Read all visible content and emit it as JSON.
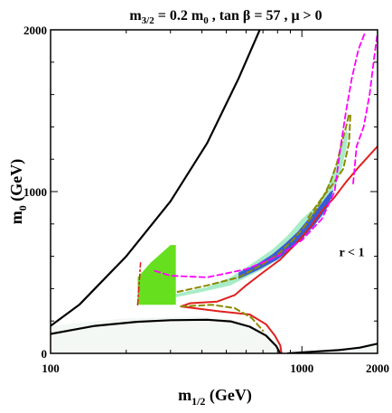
{
  "chart_data": {
    "type": "line",
    "title": "m3/2 = 0.2 m0 , tan β = 57 ,  μ > 0",
    "title_parts": {
      "m_main": "m",
      "m_sub": "3/2",
      "eq_mid": " = 0.2 m",
      "m0_sub": "0",
      "rest": " , tan β = 57 ,  μ > 0"
    },
    "xlabel_parts": {
      "main": "m",
      "sub": "1/2",
      "unit": " (GeV)"
    },
    "ylabel_parts": {
      "main": "m",
      "sub": "0",
      "unit": " (GeV)"
    },
    "xlim": [
      100,
      2000
    ],
    "ylim": [
      0,
      2000
    ],
    "x_ticks": [
      {
        "value": 100,
        "label": "100"
      },
      {
        "value": 1000,
        "label": "1000"
      },
      {
        "value": 2000,
        "label": "2000"
      }
    ],
    "y_ticks": [
      {
        "value": 0,
        "label": "0"
      },
      {
        "value": 1000,
        "label": "1000"
      },
      {
        "value": 2000,
        "label": "2000"
      }
    ],
    "annotation": {
      "text": "r < 1",
      "x": 1580,
      "y": 600
    },
    "grid": false,
    "colors": {
      "charged_lsp_fill": "#f3f8f5",
      "wmap_light": "#a8ecc8",
      "wmap_dark": "#3a5cd8",
      "bsg_green": "#66e01e",
      "higgs": "#cc0000",
      "gmuon": "#aa1f8f",
      "chargino_lep": "#7a9a00",
      "mh_red": "#e02020",
      "gmuon_magenta": "#ff00ff",
      "olive_dashed": "#8a8a00",
      "black": "#000000"
    },
    "regions": {
      "charged_lsp_bottom": [
        [
          100,
          170
        ],
        [
          190,
          215
        ],
        [
          260,
          222
        ],
        [
          380,
          228
        ],
        [
          500,
          215
        ],
        [
          620,
          180
        ],
        [
          730,
          120
        ],
        [
          810,
          50
        ],
        [
          840,
          0
        ],
        [
          100,
          0
        ]
      ],
      "charged_lsp_right": [
        [
          900,
          0
        ],
        [
          1400,
          20
        ],
        [
          1800,
          40
        ],
        [
          2000,
          60
        ],
        [
          2000,
          0
        ]
      ],
      "bsg_green_band": [
        [
          222,
          300
        ],
        [
          222,
          470
        ],
        [
          250,
          560
        ],
        [
          300,
          670
        ],
        [
          315,
          670
        ],
        [
          315,
          300
        ]
      ],
      "wmap_light_band": [
        [
          300,
          340
        ],
        [
          400,
          380
        ],
        [
          520,
          420
        ],
        [
          700,
          520
        ],
        [
          820,
          590
        ],
        [
          950,
          680
        ],
        [
          1080,
          780
        ],
        [
          1200,
          880
        ],
        [
          1300,
          980
        ],
        [
          1380,
          1060
        ],
        [
          1450,
          1160
        ],
        [
          1500,
          1260
        ],
        [
          1530,
          1360
        ],
        [
          1500,
          1380
        ],
        [
          1440,
          1280
        ],
        [
          1380,
          1180
        ],
        [
          1300,
          1080
        ],
        [
          1220,
          980
        ],
        [
          1120,
          900
        ],
        [
          1000,
          830
        ],
        [
          880,
          730
        ],
        [
          760,
          640
        ],
        [
          640,
          560
        ],
        [
          520,
          470
        ],
        [
          420,
          410
        ],
        [
          320,
          370
        ],
        [
          300,
          350
        ]
      ],
      "wmap_dark_band": [
        [
          560,
          460
        ],
        [
          680,
          520
        ],
        [
          800,
          580
        ],
        [
          920,
          650
        ],
        [
          1020,
          720
        ],
        [
          1120,
          790
        ],
        [
          1200,
          850
        ],
        [
          1260,
          900
        ],
        [
          1300,
          950
        ],
        [
          1330,
          1000
        ],
        [
          1340,
          1010
        ],
        [
          1300,
          1000
        ],
        [
          1240,
          960
        ],
        [
          1160,
          900
        ],
        [
          1060,
          830
        ],
        [
          960,
          750
        ],
        [
          860,
          680
        ],
        [
          760,
          610
        ],
        [
          660,
          550
        ],
        [
          560,
          500
        ]
      ]
    },
    "series": [
      {
        "style": "black-solid",
        "points": [
          [
            100,
            170
          ],
          [
            130,
            300
          ],
          [
            200,
            600
          ],
          [
            300,
            940
          ],
          [
            420,
            1300
          ],
          [
            560,
            1700
          ],
          [
            680,
            2000
          ]
        ]
      },
      {
        "style": "black-solid",
        "points": [
          [
            100,
            120
          ],
          [
            150,
            170
          ],
          [
            220,
            195
          ],
          [
            300,
            205
          ],
          [
            420,
            208
          ],
          [
            520,
            198
          ],
          [
            620,
            165
          ],
          [
            720,
            110
          ],
          [
            790,
            45
          ],
          [
            820,
            0
          ]
        ]
      },
      {
        "style": "black-solid",
        "points": [
          [
            880,
            0
          ],
          [
            1100,
            10
          ],
          [
            1400,
            20
          ],
          [
            1700,
            35
          ],
          [
            2000,
            60
          ]
        ]
      },
      {
        "style": "red-solid",
        "points": [
          [
            830,
            0
          ],
          [
            820,
            50
          ],
          [
            780,
            110
          ],
          [
            720,
            180
          ],
          [
            620,
            240
          ],
          [
            470,
            260
          ],
          [
            330,
            290
          ],
          [
            360,
            310
          ],
          [
            460,
            320
          ],
          [
            540,
            360
          ],
          [
            600,
            420
          ],
          [
            700,
            500
          ],
          [
            820,
            580
          ],
          [
            950,
            680
          ],
          [
            1080,
            780
          ],
          [
            1200,
            880
          ],
          [
            1340,
            960
          ],
          [
            1500,
            1060
          ],
          [
            1700,
            1160
          ],
          [
            2000,
            1280
          ]
        ]
      },
      {
        "style": "olive-dashed",
        "points": [
          [
            330,
            290
          ],
          [
            440,
            300
          ],
          [
            540,
            280
          ],
          [
            630,
            220
          ],
          [
            700,
            140
          ]
        ]
      },
      {
        "style": "olive-dashed",
        "points": [
          [
            320,
            380
          ],
          [
            420,
            420
          ],
          [
            560,
            470
          ],
          [
            680,
            540
          ],
          [
            800,
            610
          ],
          [
            920,
            700
          ],
          [
            1020,
            780
          ],
          [
            1100,
            850
          ],
          [
            1200,
            950
          ],
          [
            1300,
            1060
          ],
          [
            1380,
            1180
          ],
          [
            1440,
            1300
          ],
          [
            1500,
            1400
          ],
          [
            1540,
            1480
          ]
        ]
      },
      {
        "style": "olive-dashed",
        "points": [
          [
            1060,
            840
          ],
          [
            1200,
            960
          ],
          [
            1320,
            1040
          ],
          [
            1460,
            1140
          ],
          [
            1540,
            1300
          ],
          [
            1560,
            1480
          ]
        ]
      },
      {
        "style": "magenta-dashed",
        "points": [
          [
            260,
            510
          ],
          [
            300,
            480
          ],
          [
            420,
            470
          ],
          [
            600,
            520
          ],
          [
            800,
            600
          ],
          [
            1000,
            700
          ],
          [
            1200,
            830
          ],
          [
            1350,
            1000
          ],
          [
            1420,
            1260
          ],
          [
            1500,
            1500
          ],
          [
            1580,
            1700
          ],
          [
            1680,
            1880
          ],
          [
            1780,
            1980
          ]
        ]
      },
      {
        "style": "magenta-dashed",
        "points": [
          [
            1600,
            1050
          ],
          [
            1650,
            1280
          ],
          [
            1760,
            1400
          ],
          [
            1860,
            1600
          ],
          [
            1940,
            1830
          ],
          [
            1990,
            1960
          ]
        ]
      },
      {
        "style": "red-dashdot",
        "points": [
          [
            222,
            300
          ],
          [
            225,
            420
          ],
          [
            228,
            560
          ]
        ]
      }
    ]
  }
}
